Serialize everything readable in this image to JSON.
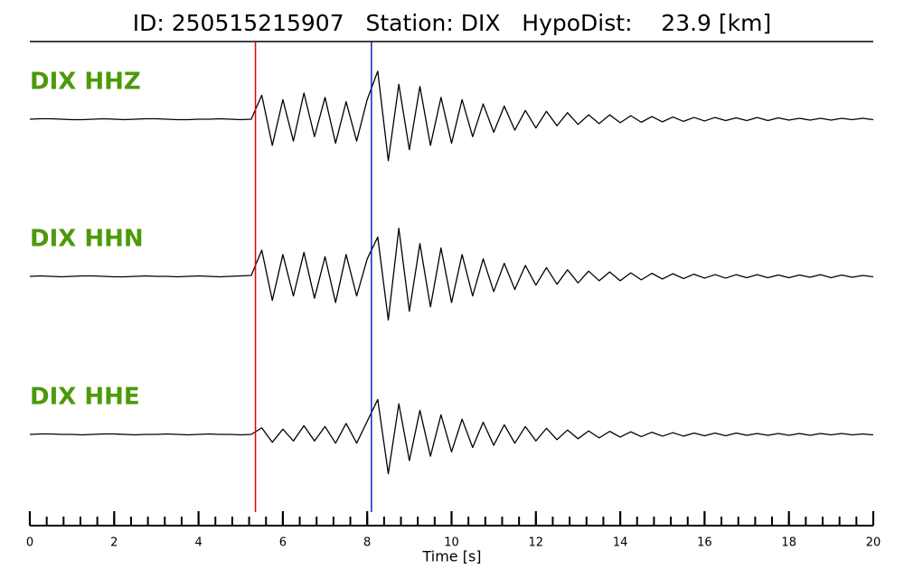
{
  "chart_data": {
    "type": "line",
    "title": "ID: 250515215907   Station: DIX   HypoDist:    23.9 [km]",
    "x_label": "Time [s]",
    "xlim": [
      0,
      20
    ],
    "xticks": [
      0,
      2,
      4,
      6,
      8,
      10,
      12,
      14,
      16,
      18,
      20
    ],
    "xminor": 0.4,
    "ylim": [
      -1.2,
      1.2
    ],
    "label_color": "#4c9a0a",
    "picks": [
      {
        "time": 5.35,
        "color": "#e00000"
      },
      {
        "time": 8.1,
        "color": "#1020c0"
      }
    ],
    "x": [
      0,
      0.25,
      0.5,
      0.75,
      1,
      1.25,
      1.5,
      1.75,
      2,
      2.25,
      2.5,
      2.75,
      3,
      3.25,
      3.5,
      3.75,
      4,
      4.25,
      4.5,
      4.75,
      5,
      5.25,
      5.5,
      5.75,
      6,
      6.25,
      6.5,
      6.75,
      7,
      7.25,
      7.5,
      7.75,
      8,
      8.25,
      8.5,
      8.75,
      9,
      9.25,
      9.5,
      9.75,
      10,
      10.25,
      10.5,
      10.75,
      11,
      11.25,
      11.5,
      11.75,
      12,
      12.25,
      12.5,
      12.75,
      13,
      13.25,
      13.5,
      13.75,
      14,
      14.25,
      14.5,
      14.75,
      15,
      15.25,
      15.5,
      15.75,
      16,
      16.25,
      16.5,
      16.75,
      17,
      17.25,
      17.5,
      17.75,
      18,
      18.25,
      18.5,
      18.75,
      19,
      19.25,
      19.5,
      19.75,
      20
    ],
    "series": [
      {
        "name": "DIX HHZ",
        "color": "#000000",
        "values": [
          0,
          0.01,
          0.01,
          0,
          -0.01,
          -0.01,
          0,
          0.01,
          0,
          -0.01,
          0,
          0.01,
          0.01,
          0,
          -0.01,
          -0.01,
          0,
          0,
          0.01,
          0,
          -0.01,
          0,
          0.55,
          -0.6,
          0.45,
          -0.5,
          0.6,
          -0.4,
          0.5,
          -0.55,
          0.4,
          -0.5,
          0.45,
          1.1,
          -0.95,
          0.8,
          -0.7,
          0.75,
          -0.6,
          0.5,
          -0.55,
          0.45,
          -0.4,
          0.35,
          -0.3,
          0.3,
          -0.25,
          0.2,
          -0.2,
          0.18,
          -0.15,
          0.15,
          -0.12,
          0.1,
          -0.1,
          0.1,
          -0.08,
          0.08,
          -0.07,
          0.06,
          -0.06,
          0.05,
          -0.05,
          0.04,
          -0.04,
          0.04,
          -0.03,
          0.03,
          -0.03,
          0.04,
          -0.03,
          0.03,
          -0.02,
          0.02,
          -0.02,
          0.02,
          -0.02,
          0.02,
          -0.01,
          0.02,
          -0.01
        ]
      },
      {
        "name": "DIX HHN",
        "color": "#000000",
        "values": [
          0,
          0.01,
          0,
          -0.01,
          0,
          0.01,
          0.01,
          0,
          -0.01,
          -0.01,
          0,
          0.01,
          0,
          0,
          -0.01,
          0,
          0.01,
          0,
          -0.01,
          0,
          0.01,
          0.02,
          0.6,
          -0.55,
          0.5,
          -0.45,
          0.55,
          -0.5,
          0.45,
          -0.6,
          0.5,
          -0.45,
          0.4,
          0.9,
          -1.0,
          1.1,
          -0.8,
          0.75,
          -0.7,
          0.65,
          -0.6,
          0.5,
          -0.45,
          0.4,
          -0.35,
          0.3,
          -0.3,
          0.25,
          -0.2,
          0.2,
          -0.18,
          0.15,
          -0.15,
          0.12,
          -0.1,
          0.1,
          -0.1,
          0.08,
          -0.08,
          0.07,
          -0.06,
          0.06,
          -0.05,
          0.05,
          -0.04,
          0.04,
          -0.04,
          0.04,
          -0.03,
          0.04,
          -0.03,
          0.03,
          -0.03,
          0.03,
          -0.02,
          0.04,
          -0.03,
          0.03,
          -0.02,
          0.02,
          -0.01
        ]
      },
      {
        "name": "DIX HHE",
        "color": "#000000",
        "values": [
          0,
          0.01,
          0.01,
          0,
          0,
          -0.01,
          0,
          0.01,
          0.01,
          0,
          -0.01,
          0,
          0,
          0.01,
          0,
          -0.01,
          0,
          0.01,
          0,
          0,
          -0.01,
          0,
          0.15,
          -0.18,
          0.12,
          -0.15,
          0.2,
          -0.15,
          0.18,
          -0.2,
          0.25,
          -0.2,
          0.3,
          0.8,
          -0.9,
          0.7,
          -0.6,
          0.55,
          -0.5,
          0.45,
          -0.4,
          0.35,
          -0.3,
          0.28,
          -0.25,
          0.22,
          -0.2,
          0.18,
          -0.15,
          0.14,
          -0.12,
          0.1,
          -0.1,
          0.08,
          -0.08,
          0.07,
          -0.06,
          0.06,
          -0.05,
          0.05,
          -0.04,
          0.04,
          -0.04,
          0.03,
          -0.03,
          0.03,
          -0.03,
          0.03,
          -0.02,
          0.02,
          -0.02,
          0.02,
          -0.02,
          0.02,
          -0.02,
          0.02,
          -0.01,
          0.02,
          -0.01,
          0.01,
          -0.01
        ]
      }
    ]
  }
}
